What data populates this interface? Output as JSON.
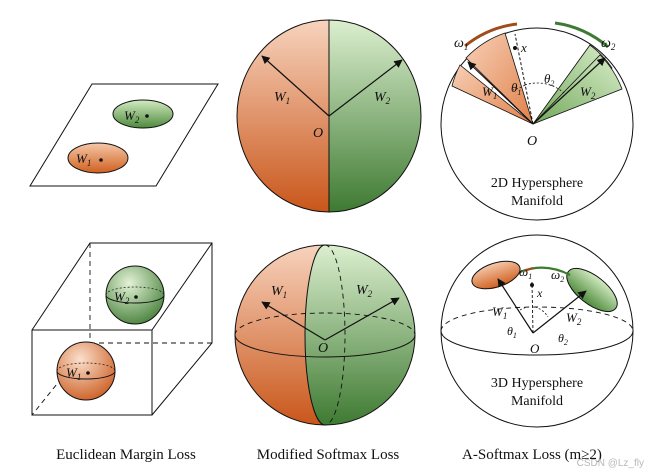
{
  "colors": {
    "orange_light": "#f6c4a3",
    "orange_dark": "#c9561a",
    "green_light": "#cfe8bd",
    "green_dark": "#3e7a32",
    "line": "#111111"
  },
  "labels": {
    "w1": "W",
    "w1_sub": "1",
    "w2": "W",
    "w2_sub": "2",
    "origin": "O",
    "x": "x",
    "omega": "ω",
    "omega1_sub": "1",
    "omega2_sub": "2",
    "theta": "θ",
    "theta1_sub": "1",
    "theta2_sub": "2"
  },
  "panels": {
    "top_right_title_line1": "2D Hypersphere",
    "top_right_title_line2": "Manifold",
    "bottom_right_title_line1": "3D Hypersphere",
    "bottom_right_title_line2": "Manifold"
  },
  "captions": {
    "left": "Euclidean Margin Loss",
    "middle": "Modified Softmax Loss",
    "right": "A-Softmax Loss (m≥2)"
  },
  "watermark": "CSDN @Lz_fly"
}
